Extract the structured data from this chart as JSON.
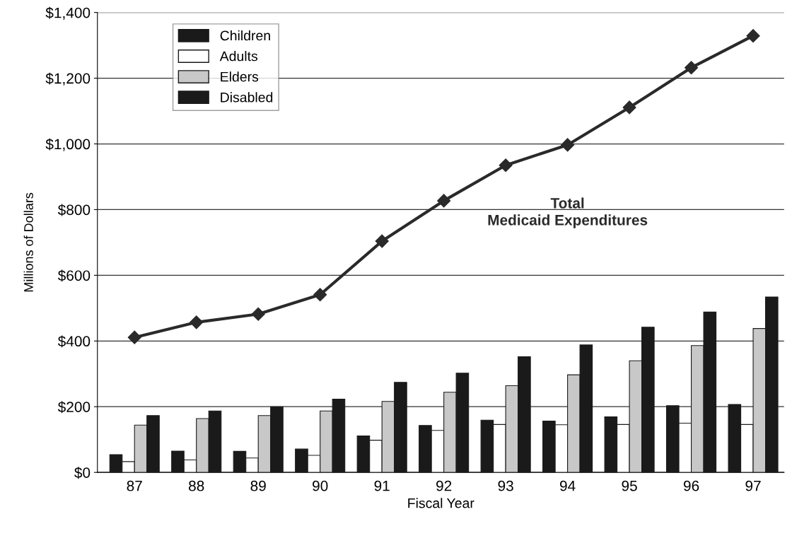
{
  "chart_data": {
    "type": "bar",
    "xlabel": "Fiscal Year",
    "ylabel": "Millions of Dollars",
    "categories": [
      "87",
      "88",
      "89",
      "90",
      "91",
      "92",
      "93",
      "94",
      "95",
      "96",
      "97"
    ],
    "series": [
      {
        "name": "Children",
        "color": "#1a1a1a",
        "values": [
          54,
          65,
          64,
          71,
          111,
          143,
          159,
          156,
          169,
          203,
          207
        ]
      },
      {
        "name": "Adults",
        "color": "#ffffff",
        "values": [
          33,
          38,
          44,
          52,
          98,
          128,
          146,
          145,
          146,
          150,
          146
        ]
      },
      {
        "name": "Elders",
        "color": "#c8c8c8",
        "values": [
          144,
          164,
          173,
          187,
          216,
          244,
          264,
          297,
          340,
          386,
          438
        ]
      },
      {
        "name": "Disabled",
        "color": "#1a1a1a",
        "values": [
          173,
          187,
          200,
          223,
          274,
          302,
          352,
          388,
          442,
          488,
          534
        ]
      },
      {
        "name": "Total\nMedicaid Expenditures",
        "type": "line",
        "color": "#2a2a2a",
        "marker": "diamond",
        "values": [
          411,
          457,
          482,
          541,
          704,
          827,
          935,
          997,
          1111,
          1232,
          1329
        ]
      }
    ],
    "ylim": [
      0,
      1400
    ],
    "yticks": [
      {
        "value": 0,
        "label": "$0"
      },
      {
        "value": 200,
        "label": "$200"
      },
      {
        "value": 400,
        "label": "$400"
      },
      {
        "value": 600,
        "label": "$600"
      },
      {
        "value": 800,
        "label": "$800"
      },
      {
        "value": 1000,
        "label": "$1,000"
      },
      {
        "value": 1200,
        "label": "$1,200"
      },
      {
        "value": 1400,
        "label": "$1,400"
      }
    ],
    "grid": "y",
    "legend": "top left"
  }
}
